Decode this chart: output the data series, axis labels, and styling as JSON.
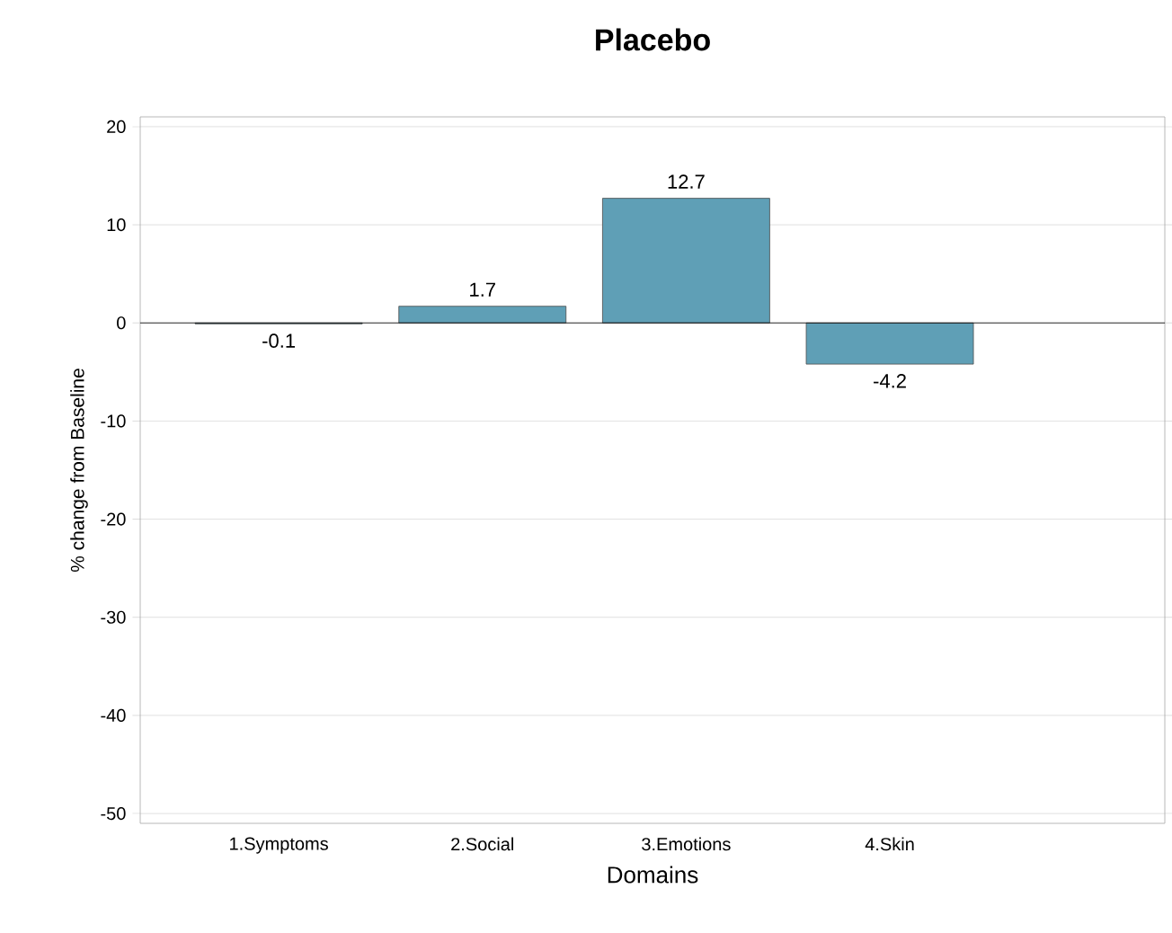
{
  "chart_data": {
    "type": "bar",
    "title": "Placebo",
    "xlabel": "Domains",
    "ylabel": "% change from Baseline",
    "categories": [
      "1.Symptoms",
      "2.Social",
      "3.Emotions",
      "4.Skin"
    ],
    "values": [
      -0.1,
      1.7,
      12.7,
      -4.2
    ],
    "color": "#5f9fb6",
    "ylim": [
      -51,
      21
    ],
    "yticks": [
      -50,
      -40,
      -30,
      -20,
      -10,
      0,
      10,
      20
    ],
    "grid": "y",
    "data_labels": true
  }
}
